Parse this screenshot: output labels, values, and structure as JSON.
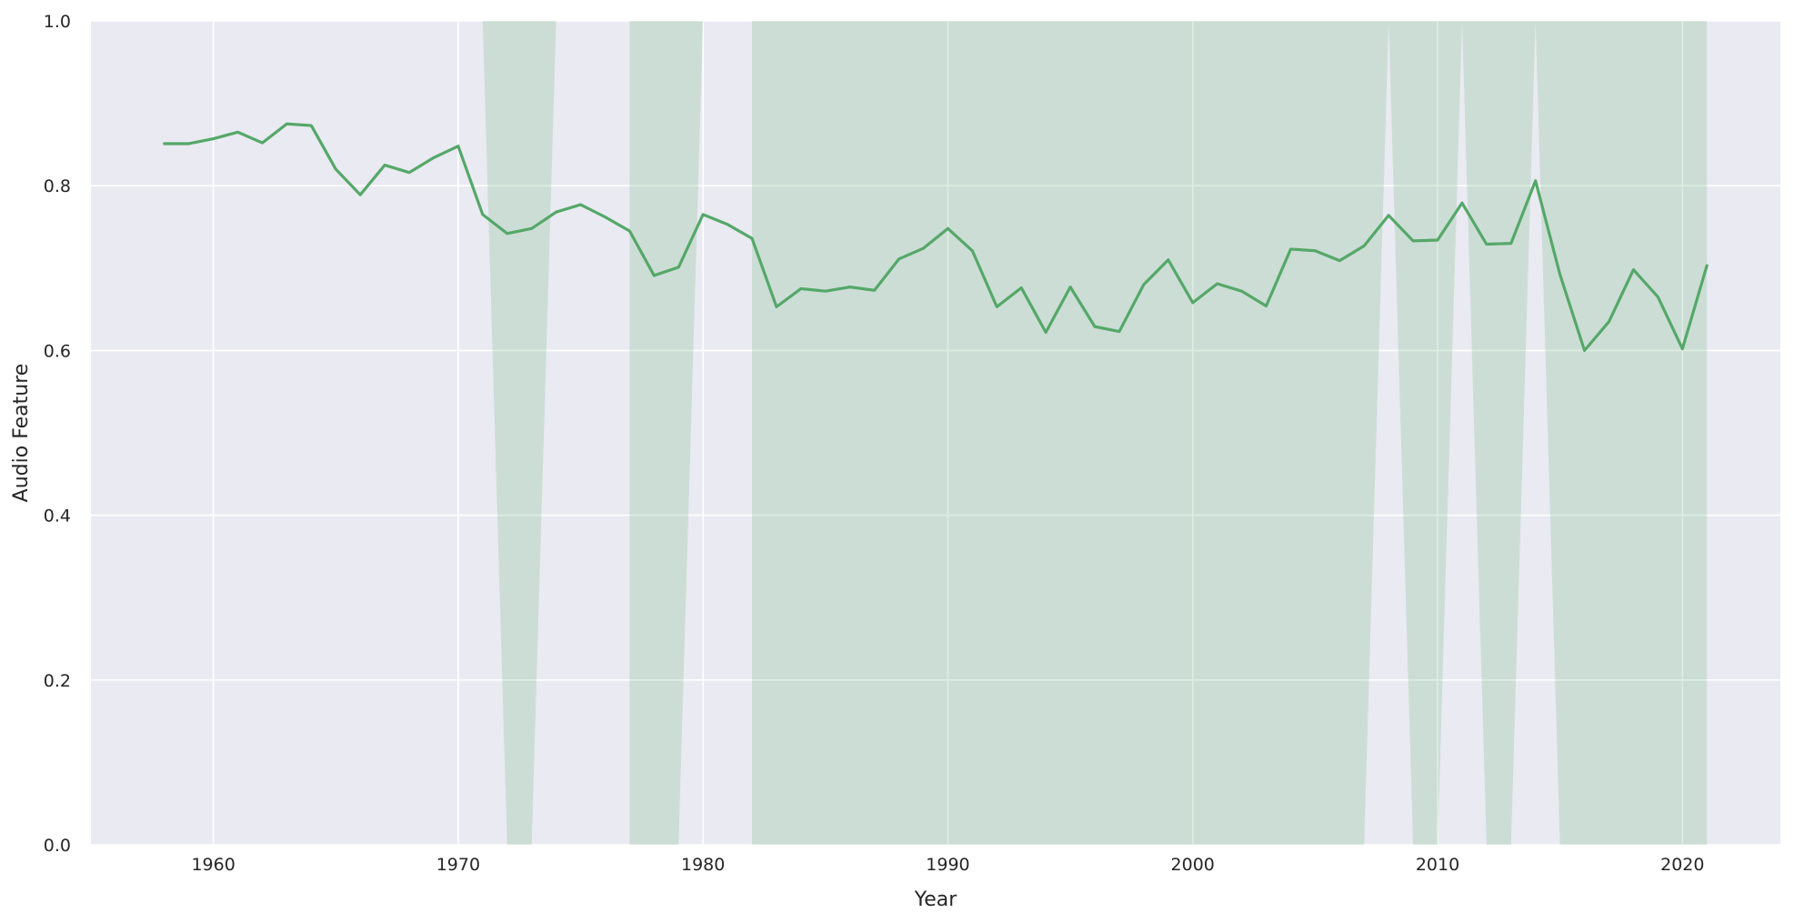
{
  "chart_data": {
    "type": "line",
    "title": "",
    "xlabel": "Year",
    "ylabel": "Audio Feature",
    "xlim": [
      1955,
      2024
    ],
    "ylim": [
      0.0,
      1.0
    ],
    "xticks": [
      1960,
      1970,
      1980,
      1990,
      2000,
      2010,
      2020
    ],
    "yticks": [
      0.0,
      0.2,
      0.4,
      0.6,
      0.8,
      1.0
    ],
    "xtick_labels": [
      "1960",
      "1970",
      "1980",
      "1990",
      "2000",
      "2010",
      "2020"
    ],
    "ytick_labels": [
      "0.0",
      "0.2",
      "0.4",
      "0.6",
      "0.8",
      "1.0"
    ],
    "grid": true,
    "colors": {
      "background": "#eaeaf2",
      "grid": "#ffffff",
      "line": "#55a868",
      "band": "#55a868"
    },
    "series": [
      {
        "x": [
          1958,
          1959,
          1960,
          1961,
          1962,
          1963,
          1964,
          1965,
          1966,
          1967,
          1968,
          1969,
          1970,
          1971,
          1972,
          1973,
          1974,
          1975,
          1976,
          1977,
          1978,
          1979,
          1980,
          1981,
          1982,
          1983,
          1984,
          1985,
          1986,
          1987,
          1988,
          1989,
          1990,
          1991,
          1992,
          1993,
          1994,
          1995,
          1996,
          1997,
          1998,
          1999,
          2000,
          2001,
          2002,
          2003,
          2004,
          2005,
          2006,
          2007,
          2008,
          2009,
          2010,
          2011,
          2012,
          2013,
          2014,
          2015,
          2016,
          2017,
          2018,
          2019,
          2020,
          2021
        ],
        "y": [
          0.851,
          0.851,
          0.857,
          0.865,
          0.852,
          0.875,
          0.873,
          0.82,
          0.789,
          0.825,
          0.816,
          0.834,
          0.848,
          0.765,
          0.742,
          0.748,
          0.768,
          0.777,
          0.762,
          0.745,
          0.691,
          0.701,
          0.765,
          0.753,
          0.736,
          0.653,
          0.675,
          0.672,
          0.677,
          0.673,
          0.711,
          0.724,
          0.748,
          0.721,
          0.653,
          0.676,
          0.622,
          0.677,
          0.629,
          0.623,
          0.68,
          0.71,
          0.658,
          0.681,
          0.672,
          0.654,
          0.723,
          0.721,
          0.709,
          0.727,
          0.764,
          0.733,
          0.734,
          0.779,
          0.729,
          0.73,
          0.806,
          0.692,
          0.6,
          0.635,
          0.698,
          0.665,
          0.602,
          0.703
        ],
        "ci_lower": [
          null,
          null,
          null,
          null,
          null,
          null,
          null,
          null,
          null,
          null,
          null,
          null,
          null,
          1.0,
          0.0,
          0.0,
          1.0,
          null,
          null,
          0.0,
          0.0,
          0.0,
          1.0,
          null,
          0.0,
          0.0,
          0.0,
          0.0,
          0.0,
          0.0,
          0.0,
          0.0,
          0.0,
          0.0,
          0.0,
          0.0,
          0.0,
          0.0,
          0.0,
          0.0,
          0.0,
          0.0,
          0.0,
          0.0,
          0.0,
          0.0,
          0.0,
          0.0,
          0.0,
          0.0,
          1.0,
          0.0,
          0.0,
          1.0,
          0.0,
          0.0,
          1.0,
          0.0,
          0.0,
          0.0,
          0.0,
          0.0,
          0.0,
          0.0
        ],
        "ci_upper": [
          null,
          null,
          null,
          null,
          null,
          null,
          null,
          null,
          null,
          null,
          null,
          null,
          null,
          1.0,
          1.0,
          1.0,
          1.0,
          null,
          1.0,
          1.0,
          1.0,
          1.0,
          1.0,
          null,
          1.0,
          1.0,
          1.0,
          1.0,
          1.0,
          1.0,
          1.0,
          1.0,
          1.0,
          1.0,
          1.0,
          1.0,
          1.0,
          1.0,
          1.0,
          1.0,
          1.0,
          1.0,
          1.0,
          1.0,
          1.0,
          1.0,
          1.0,
          1.0,
          1.0,
          1.0,
          1.0,
          1.0,
          1.0,
          1.0,
          1.0,
          1.0,
          1.0,
          1.0,
          1.0,
          1.0,
          1.0,
          1.0,
          1.0,
          1.0
        ]
      }
    ]
  }
}
